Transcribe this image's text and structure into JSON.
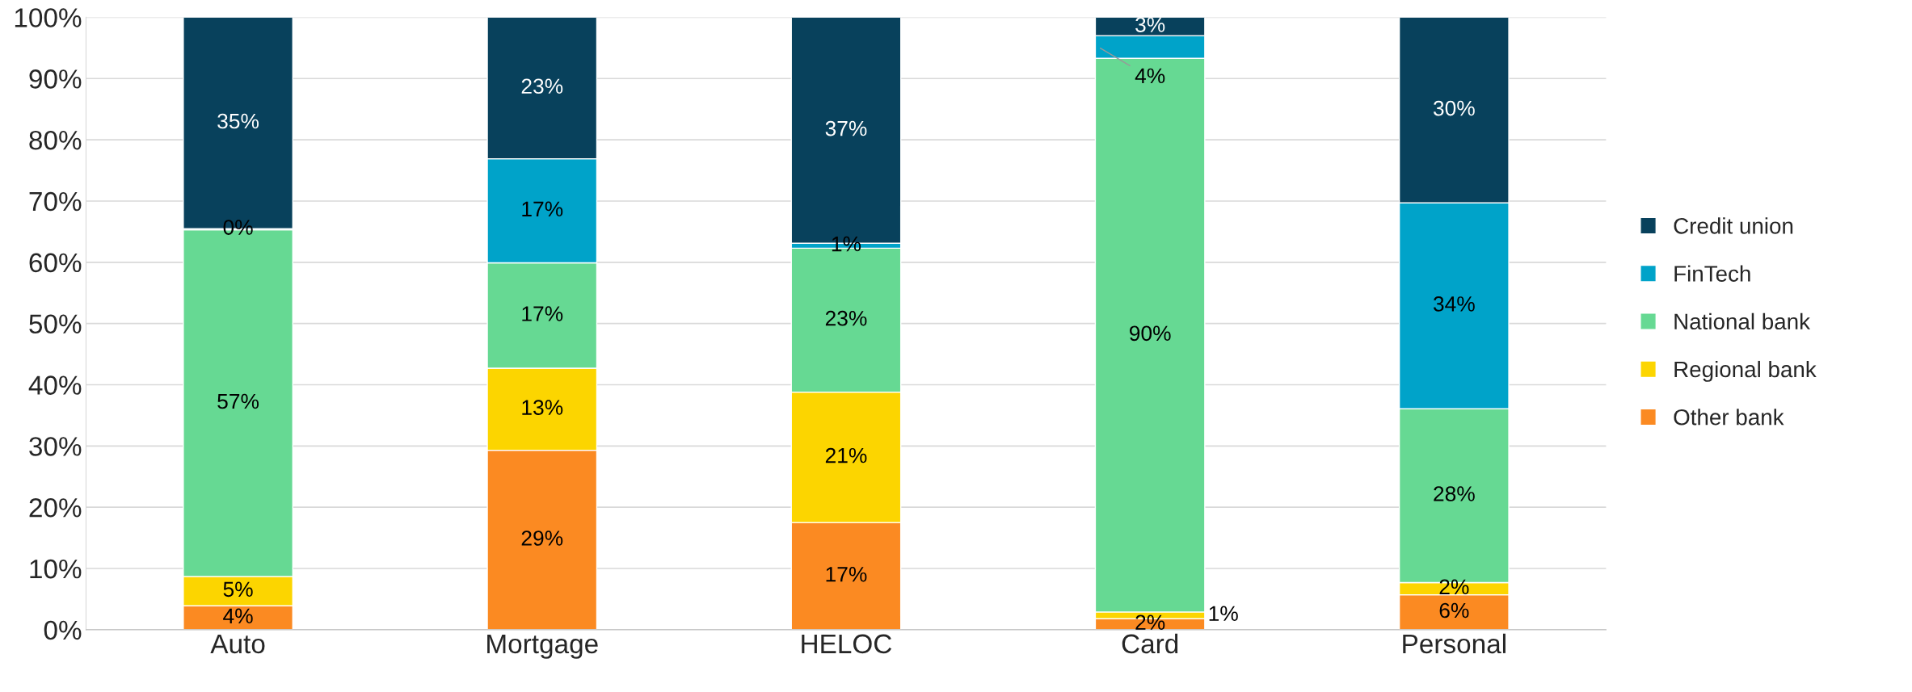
{
  "chart_data": {
    "type": "bar",
    "stacked": true,
    "categories": [
      "Auto",
      "Mortgage",
      "HELOC",
      "Card",
      "Personal"
    ],
    "series": [
      {
        "name": "Other bank",
        "color": "#fb8a22",
        "values": [
          3.9,
          29.3,
          17.5,
          1.8,
          5.7
        ],
        "value_labels": [
          "4%",
          "29%",
          "17%",
          "2%",
          "6%"
        ]
      },
      {
        "name": "Regional bank",
        "color": "#fcd500",
        "values": [
          4.8,
          13.4,
          21.3,
          1.1,
          2.0
        ],
        "value_labels": [
          "5%",
          "13%",
          "21%",
          "1%",
          "2%"
        ]
      },
      {
        "name": "National bank",
        "color": "#66d993",
        "values": [
          56.6,
          17.2,
          23.5,
          90.4,
          28.4
        ],
        "value_labels": [
          "57%",
          "17%",
          "23%",
          "90%",
          "28%"
        ]
      },
      {
        "name": "FinTech",
        "color": "#00a3c9",
        "values": [
          0.2,
          17.0,
          0.8,
          3.7,
          33.6
        ],
        "value_labels": [
          "0%",
          "17%",
          "1%",
          "4%",
          "34%"
        ]
      },
      {
        "name": "Credit union",
        "color": "#08415c",
        "values": [
          34.5,
          23.1,
          36.9,
          3.0,
          30.3
        ],
        "value_labels": [
          "35%",
          "23%",
          "37%",
          "3%",
          "30%"
        ]
      }
    ],
    "ylim": [
      0,
      100
    ],
    "yticks": [
      {
        "value": 0,
        "label": "0%"
      },
      {
        "value": 10,
        "label": "10%"
      },
      {
        "value": 20,
        "label": "20%"
      },
      {
        "value": 30,
        "label": "30%"
      },
      {
        "value": 40,
        "label": "40%"
      },
      {
        "value": 50,
        "label": "50%"
      },
      {
        "value": 60,
        "label": "60%"
      },
      {
        "value": 70,
        "label": "70%"
      },
      {
        "value": 80,
        "label": "80%"
      },
      {
        "value": 90,
        "label": "90%"
      },
      {
        "value": 100,
        "label": "100%"
      }
    ],
    "grid": "y",
    "legend": "right"
  }
}
